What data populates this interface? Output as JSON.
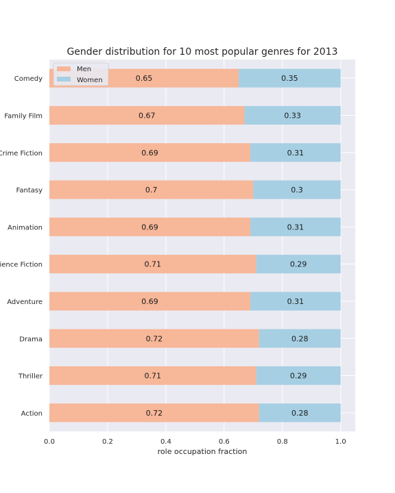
{
  "chart_data": {
    "type": "bar",
    "orientation": "horizontal",
    "stacked": true,
    "title": "Gender distribution for 10 most popular genres for 2013",
    "xlabel": "role occupation fraction",
    "ylabel": "",
    "xlim": [
      0,
      1.05
    ],
    "xticks": [
      "0.0",
      "0.2",
      "0.4",
      "0.6",
      "0.8",
      "1.0"
    ],
    "grid": true,
    "legend_position": "top-left",
    "categories": [
      "Comedy",
      "Family Film",
      "Crime Fiction",
      "Fantasy",
      "Animation",
      "Science Fiction",
      "Adventure",
      "Drama",
      "Thriller",
      "Action"
    ],
    "series": [
      {
        "name": "Men",
        "color": "#f7b799",
        "values": [
          0.65,
          0.67,
          0.69,
          0.7,
          0.69,
          0.71,
          0.69,
          0.72,
          0.71,
          0.72
        ],
        "labels": [
          "0.65",
          "0.67",
          "0.69",
          "0.7",
          "0.69",
          "0.71",
          "0.69",
          "0.72",
          "0.71",
          "0.72"
        ]
      },
      {
        "name": "Women",
        "color": "#a6cfe3",
        "values": [
          0.35,
          0.33,
          0.31,
          0.3,
          0.31,
          0.29,
          0.31,
          0.28,
          0.29,
          0.28
        ],
        "labels": [
          "0.35",
          "0.33",
          "0.31",
          "0.3",
          "0.31",
          "0.29",
          "0.31",
          "0.28",
          "0.29",
          "0.28"
        ]
      }
    ]
  }
}
